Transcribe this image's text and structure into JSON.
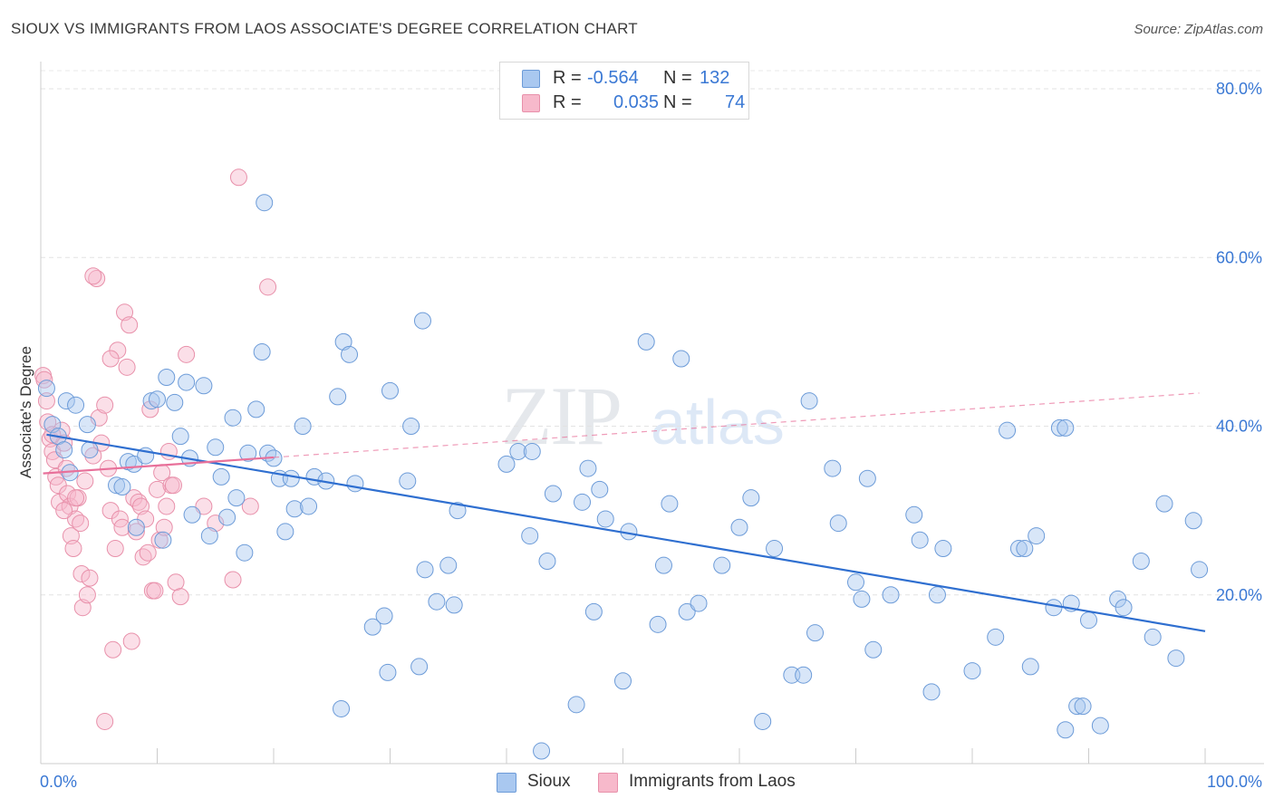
{
  "title": "SIOUX VS IMMIGRANTS FROM LAOS ASSOCIATE'S DEGREE CORRELATION CHART",
  "source": "Source: ZipAtlas.com",
  "watermark": {
    "zip": "ZIP",
    "atlas": "atlas"
  },
  "legend": {
    "r_label": "R =",
    "n_label": "N =",
    "rows": [
      {
        "name": "Sioux",
        "r": "-0.564",
        "n": "132",
        "color": "#a9c8f0",
        "stroke": "#6c9bd8"
      },
      {
        "name": "Immigrants from Laos",
        "r": "0.035",
        "n": "74",
        "color": "#f7b9cb",
        "stroke": "#e890aa"
      }
    ]
  },
  "chart_data": {
    "type": "scatter",
    "title": "SIOUX VS IMMIGRANTS FROM LAOS ASSOCIATE'S DEGREE CORRELATION CHART",
    "xlabel": "",
    "ylabel": "Associate's Degree",
    "xlim": [
      0,
      100
    ],
    "ylim": [
      0,
      82
    ],
    "x_tick_labels": [
      "0.0%",
      "100.0%"
    ],
    "y_ticks": [
      20,
      40,
      60,
      80
    ],
    "y_tick_labels": [
      "20.0%",
      "40.0%",
      "60.0%",
      "80.0%"
    ],
    "grid": true,
    "legend_position": "top-center",
    "series": [
      {
        "name": "Sioux",
        "color": "#a9c8f0",
        "stroke": "#6c9bd8",
        "trend_color": "#2f6fd0",
        "trend": {
          "x0": 0.5,
          "y0": 39.0,
          "x1": 100,
          "y1": 15.7,
          "dashed_x1": null
        },
        "points": [
          [
            0.5,
            44.5
          ],
          [
            1.0,
            40.2
          ],
          [
            1.5,
            38.8
          ],
          [
            2.0,
            37.2
          ],
          [
            2.2,
            43.0
          ],
          [
            2.5,
            34.5
          ],
          [
            3.0,
            42.5
          ],
          [
            4.0,
            40.2
          ],
          [
            4.2,
            37.2
          ],
          [
            6.5,
            33.0
          ],
          [
            7.0,
            32.8
          ],
          [
            7.5,
            35.8
          ],
          [
            8.0,
            35.5
          ],
          [
            8.2,
            28.0
          ],
          [
            9.0,
            36.5
          ],
          [
            9.5,
            43.0
          ],
          [
            10.0,
            43.2
          ],
          [
            10.5,
            26.5
          ],
          [
            10.8,
            45.8
          ],
          [
            11.5,
            42.8
          ],
          [
            12.0,
            38.8
          ],
          [
            12.5,
            45.2
          ],
          [
            12.8,
            36.2
          ],
          [
            13.0,
            29.5
          ],
          [
            14.0,
            44.8
          ],
          [
            14.5,
            27.0
          ],
          [
            15.0,
            37.5
          ],
          [
            15.5,
            34.0
          ],
          [
            16.0,
            29.2
          ],
          [
            16.5,
            41.0
          ],
          [
            16.8,
            31.5
          ],
          [
            17.5,
            25.0
          ],
          [
            17.8,
            36.8
          ],
          [
            18.5,
            42.0
          ],
          [
            19.0,
            48.8
          ],
          [
            19.2,
            66.5
          ],
          [
            19.5,
            36.8
          ],
          [
            20.0,
            36.2
          ],
          [
            20.5,
            33.8
          ],
          [
            21.0,
            27.5
          ],
          [
            21.5,
            33.8
          ],
          [
            21.8,
            30.2
          ],
          [
            22.5,
            40.0
          ],
          [
            23.0,
            30.5
          ],
          [
            23.5,
            34.0
          ],
          [
            24.5,
            33.5
          ],
          [
            25.5,
            43.5
          ],
          [
            25.8,
            6.5
          ],
          [
            26.0,
            50.0
          ],
          [
            26.5,
            48.5
          ],
          [
            27.0,
            33.2
          ],
          [
            28.5,
            16.2
          ],
          [
            29.5,
            17.5
          ],
          [
            29.8,
            10.8
          ],
          [
            30.0,
            44.2
          ],
          [
            31.5,
            33.5
          ],
          [
            31.8,
            40.0
          ],
          [
            32.5,
            11.5
          ],
          [
            32.8,
            52.5
          ],
          [
            33.0,
            23.0
          ],
          [
            34.0,
            19.2
          ],
          [
            35.0,
            23.5
          ],
          [
            35.5,
            18.8
          ],
          [
            35.8,
            30.0
          ],
          [
            40.0,
            35.5
          ],
          [
            41.0,
            37.0
          ],
          [
            42.0,
            27.0
          ],
          [
            42.2,
            37.0
          ],
          [
            43.0,
            1.5
          ],
          [
            43.5,
            24.0
          ],
          [
            44.0,
            32.0
          ],
          [
            46.0,
            7.0
          ],
          [
            46.5,
            31.0
          ],
          [
            47.0,
            35.0
          ],
          [
            47.5,
            18.0
          ],
          [
            48.0,
            32.5
          ],
          [
            48.5,
            29.0
          ],
          [
            50.0,
            9.8
          ],
          [
            50.5,
            27.5
          ],
          [
            52.0,
            50.0
          ],
          [
            53.0,
            16.5
          ],
          [
            53.5,
            23.5
          ],
          [
            54.0,
            30.8
          ],
          [
            55.0,
            48.0
          ],
          [
            55.5,
            18.0
          ],
          [
            56.5,
            19.0
          ],
          [
            58.5,
            23.5
          ],
          [
            60.0,
            28.0
          ],
          [
            61.0,
            31.5
          ],
          [
            62.0,
            5.0
          ],
          [
            63.0,
            25.5
          ],
          [
            64.5,
            10.5
          ],
          [
            65.5,
            10.5
          ],
          [
            66.0,
            43.0
          ],
          [
            66.5,
            15.5
          ],
          [
            68.0,
            35.0
          ],
          [
            68.5,
            28.5
          ],
          [
            70.0,
            21.5
          ],
          [
            70.5,
            19.5
          ],
          [
            71.0,
            33.8
          ],
          [
            71.5,
            13.5
          ],
          [
            73.0,
            20.0
          ],
          [
            75.0,
            29.5
          ],
          [
            75.5,
            26.5
          ],
          [
            76.5,
            8.5
          ],
          [
            77.0,
            20.0
          ],
          [
            77.5,
            25.5
          ],
          [
            80.0,
            11.0
          ],
          [
            82.0,
            15.0
          ],
          [
            83.0,
            39.5
          ],
          [
            84.0,
            25.5
          ],
          [
            84.5,
            25.5
          ],
          [
            85.0,
            11.5
          ],
          [
            85.5,
            27.0
          ],
          [
            87.0,
            18.5
          ],
          [
            87.5,
            39.8
          ],
          [
            88.0,
            4.0
          ],
          [
            88.5,
            19.0
          ],
          [
            89.0,
            6.8
          ],
          [
            89.5,
            6.8
          ],
          [
            90.0,
            17.0
          ],
          [
            91.0,
            4.5
          ],
          [
            92.5,
            19.5
          ],
          [
            93.0,
            18.5
          ],
          [
            94.5,
            24.0
          ],
          [
            95.5,
            15.0
          ],
          [
            96.5,
            30.8
          ],
          [
            97.5,
            12.5
          ],
          [
            99.0,
            28.8
          ],
          [
            99.5,
            23.0
          ],
          [
            88.0,
            39.8
          ]
        ]
      },
      {
        "name": "Immigrants from Laos",
        "color": "#f7b9cb",
        "stroke": "#e890aa",
        "trend_color": "#e8709a",
        "trend": {
          "x0": 0.2,
          "y0": 34.4,
          "x1": 20.0,
          "y1": 36.3,
          "dashed_x1": 99.5
        },
        "points": [
          [
            0.2,
            46.0
          ],
          [
            0.3,
            45.5
          ],
          [
            0.5,
            43.0
          ],
          [
            0.6,
            40.5
          ],
          [
            0.8,
            38.5
          ],
          [
            1.0,
            37.0
          ],
          [
            1.2,
            36.0
          ],
          [
            1.3,
            34.0
          ],
          [
            1.5,
            33.0
          ],
          [
            1.6,
            31.0
          ],
          [
            1.8,
            39.5
          ],
          [
            2.0,
            38.0
          ],
          [
            2.2,
            35.0
          ],
          [
            2.3,
            32.0
          ],
          [
            2.5,
            30.5
          ],
          [
            2.6,
            27.0
          ],
          [
            2.8,
            25.5
          ],
          [
            3.0,
            29.0
          ],
          [
            3.2,
            31.5
          ],
          [
            3.4,
            28.5
          ],
          [
            3.5,
            22.5
          ],
          [
            3.6,
            18.5
          ],
          [
            3.8,
            33.5
          ],
          [
            4.0,
            20.0
          ],
          [
            4.2,
            22.0
          ],
          [
            4.5,
            36.5
          ],
          [
            4.8,
            57.5
          ],
          [
            5.0,
            41.0
          ],
          [
            5.2,
            38.0
          ],
          [
            5.5,
            42.5
          ],
          [
            5.8,
            35.0
          ],
          [
            6.0,
            30.0
          ],
          [
            6.2,
            13.5
          ],
          [
            6.4,
            25.5
          ],
          [
            6.6,
            49.0
          ],
          [
            6.8,
            29.0
          ],
          [
            7.0,
            28.0
          ],
          [
            7.2,
            53.5
          ],
          [
            7.4,
            47.0
          ],
          [
            7.6,
            52.0
          ],
          [
            7.8,
            14.5
          ],
          [
            8.0,
            31.5
          ],
          [
            8.2,
            27.5
          ],
          [
            8.4,
            31.0
          ],
          [
            8.6,
            30.5
          ],
          [
            8.8,
            24.5
          ],
          [
            9.0,
            29.0
          ],
          [
            9.2,
            25.0
          ],
          [
            9.4,
            42.0
          ],
          [
            9.6,
            20.5
          ],
          [
            9.8,
            20.5
          ],
          [
            10.0,
            32.5
          ],
          [
            10.2,
            26.5
          ],
          [
            10.4,
            34.5
          ],
          [
            10.6,
            28.0
          ],
          [
            10.8,
            30.5
          ],
          [
            11.0,
            37.0
          ],
          [
            11.2,
            33.0
          ],
          [
            11.4,
            33.0
          ],
          [
            11.6,
            21.5
          ],
          [
            12.0,
            19.8
          ],
          [
            12.5,
            48.5
          ],
          [
            14.0,
            30.5
          ],
          [
            15.0,
            28.5
          ],
          [
            16.5,
            21.8
          ],
          [
            17.0,
            69.5
          ],
          [
            18.0,
            30.5
          ],
          [
            19.5,
            56.5
          ],
          [
            3.0,
            31.5
          ],
          [
            2.0,
            30.0
          ],
          [
            1.0,
            39.0
          ],
          [
            4.5,
            57.8
          ],
          [
            5.5,
            5.0
          ],
          [
            6.0,
            48.0
          ]
        ]
      }
    ]
  },
  "bottom_legend": [
    {
      "name": "Sioux",
      "color": "#a9c8f0",
      "stroke": "#6c9bd8"
    },
    {
      "name": "Immigrants from Laos",
      "color": "#f7b9cb",
      "stroke": "#e890aa"
    }
  ]
}
